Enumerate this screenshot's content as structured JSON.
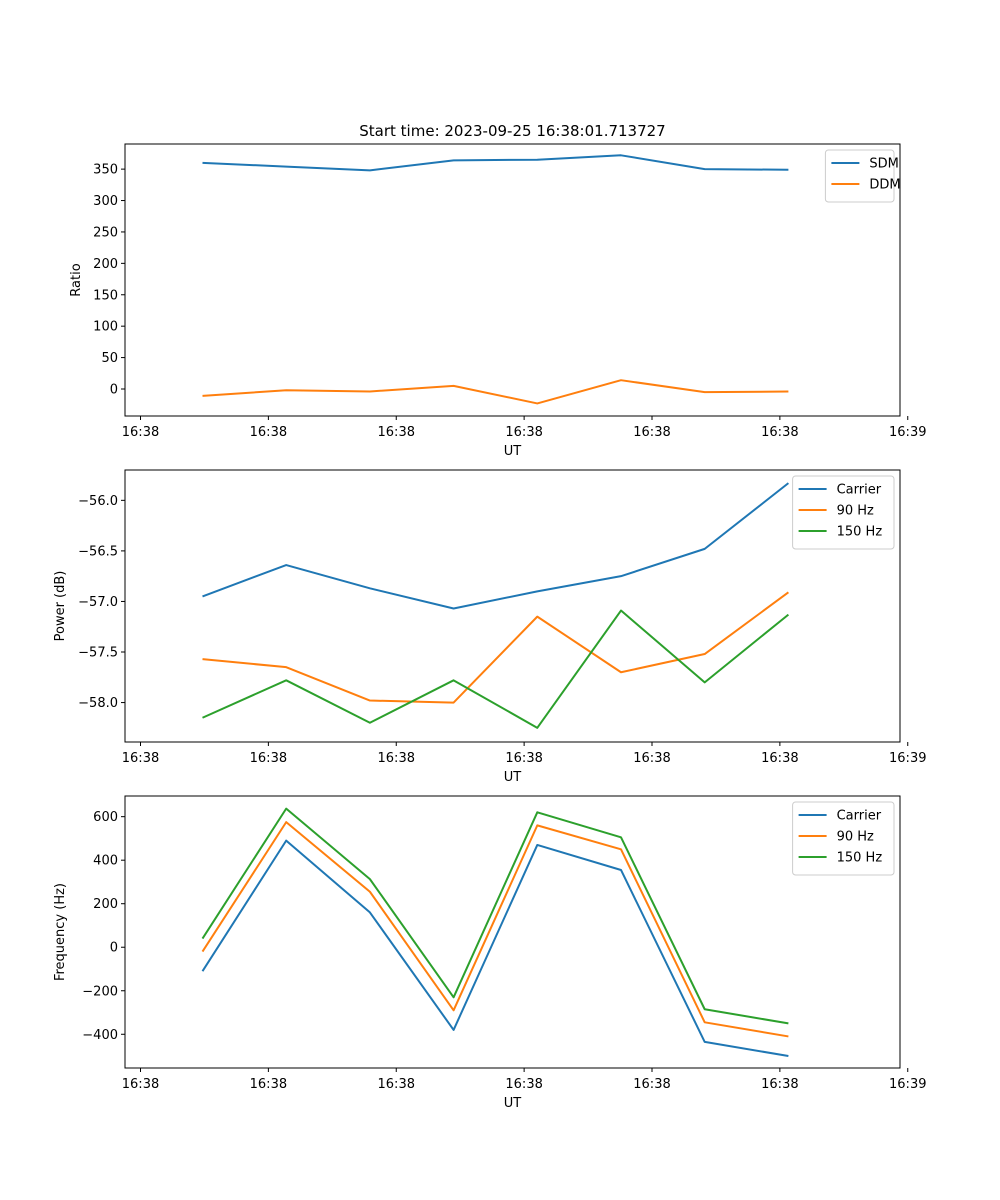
{
  "figure_title": "Start time: 2023-09-25 16:38:01.713727",
  "colors": {
    "blue": "#1f77b4",
    "orange": "#ff7f0e",
    "green": "#2ca02c"
  },
  "chart_data": [
    {
      "type": "line",
      "title": "Start time: 2023-09-25 16:38:01.713727",
      "xlabel": "UT",
      "ylabel": "Ratio",
      "xlim": [
        0,
        10
      ],
      "ylim": [
        -43,
        390
      ],
      "xticks": [
        0.2,
        1.85,
        3.5,
        5.15,
        6.8,
        8.45,
        10.1
      ],
      "xtick_labels": [
        "16:38",
        "16:38",
        "16:38",
        "16:38",
        "16:38",
        "16:38",
        "16:39"
      ],
      "yticks": [
        0,
        50,
        100,
        150,
        200,
        250,
        300,
        350
      ],
      "ytick_labels": [
        "0",
        "50",
        "100",
        "150",
        "200",
        "250",
        "300",
        "350"
      ],
      "x": [
        1.0,
        2.08,
        3.16,
        4.24,
        5.32,
        6.4,
        7.48,
        8.56
      ],
      "legend_position": "top-right",
      "series": [
        {
          "name": "SDM",
          "color": "#1f77b4",
          "values": [
            360,
            354,
            348,
            364,
            365,
            372,
            350,
            349
          ]
        },
        {
          "name": "DDM",
          "color": "#ff7f0e",
          "values": [
            -11,
            -2,
            -4,
            5,
            -23,
            14,
            -5,
            -4
          ]
        }
      ]
    },
    {
      "type": "line",
      "title": "",
      "xlabel": "UT",
      "ylabel": "Power (dB)",
      "xlim": [
        0,
        10
      ],
      "ylim": [
        -58.39,
        -55.7
      ],
      "xticks": [
        0.2,
        1.85,
        3.5,
        5.15,
        6.8,
        8.45,
        10.1
      ],
      "xtick_labels": [
        "16:38",
        "16:38",
        "16:38",
        "16:38",
        "16:38",
        "16:38",
        "16:39"
      ],
      "yticks": [
        -58.0,
        -57.5,
        -57.0,
        -56.5,
        -56.0
      ],
      "ytick_labels": [
        "−58.0",
        "−57.5",
        "−57.0",
        "−56.5",
        "−56.0"
      ],
      "x": [
        1.0,
        2.08,
        3.16,
        4.24,
        5.32,
        6.4,
        7.48,
        8.56
      ],
      "legend_position": "top-right",
      "series": [
        {
          "name": "Carrier",
          "color": "#1f77b4",
          "values": [
            -56.95,
            -56.64,
            -56.87,
            -57.07,
            -56.9,
            -56.75,
            -56.48,
            -55.83
          ]
        },
        {
          "name": "90 Hz",
          "color": "#ff7f0e",
          "values": [
            -57.57,
            -57.65,
            -57.98,
            -58.0,
            -57.15,
            -57.7,
            -57.52,
            -56.91
          ]
        },
        {
          "name": "150 Hz",
          "color": "#2ca02c",
          "values": [
            -58.15,
            -57.78,
            -58.2,
            -57.78,
            -58.25,
            -57.09,
            -57.8,
            -57.13
          ]
        }
      ]
    },
    {
      "type": "line",
      "title": "",
      "xlabel": "UT",
      "ylabel": "Frequency (Hz)",
      "xlim": [
        0,
        10
      ],
      "ylim": [
        -555,
        695
      ],
      "xticks": [
        0.2,
        1.85,
        3.5,
        5.15,
        6.8,
        8.45,
        10.1
      ],
      "xtick_labels": [
        "16:38",
        "16:38",
        "16:38",
        "16:38",
        "16:38",
        "16:38",
        "16:39"
      ],
      "yticks": [
        -400,
        -200,
        0,
        200,
        400,
        600
      ],
      "ytick_labels": [
        "−400",
        "−200",
        "0",
        "200",
        "400",
        "600"
      ],
      "x": [
        1.0,
        2.08,
        3.16,
        4.24,
        5.32,
        6.4,
        7.48,
        8.56
      ],
      "legend_position": "top-right",
      "series": [
        {
          "name": "Carrier",
          "color": "#1f77b4",
          "values": [
            -110,
            490,
            160,
            -380,
            470,
            355,
            -435,
            -500
          ]
        },
        {
          "name": "90 Hz",
          "color": "#ff7f0e",
          "values": [
            -20,
            575,
            255,
            -290,
            560,
            450,
            -345,
            -410
          ]
        },
        {
          "name": "150 Hz",
          "color": "#2ca02c",
          "values": [
            40,
            637,
            313,
            -230,
            620,
            505,
            -285,
            -350
          ]
        }
      ]
    }
  ]
}
